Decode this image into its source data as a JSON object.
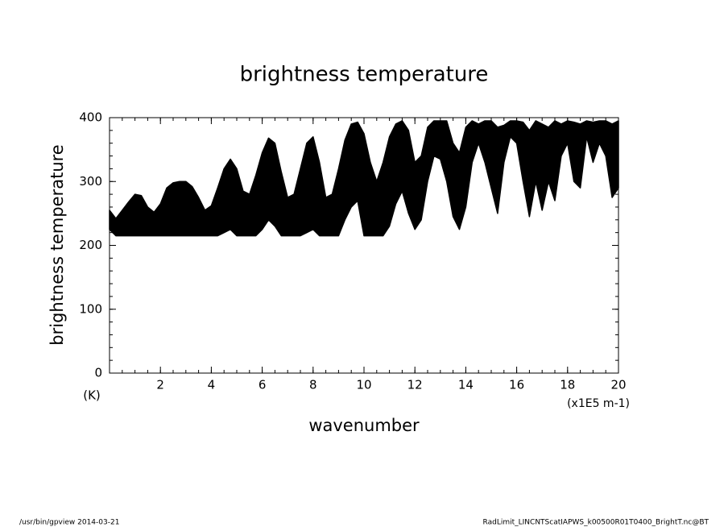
{
  "chart_data": {
    "type": "band",
    "title": "brightness temperature",
    "y_label": "brightness temperature",
    "y_unit": "(K)",
    "x_label": "wavenumber",
    "x_unit": "(x1E5 m-1)",
    "notes": [
      "/usr/bin/gpview  2014-03-21",
      "RadLimit_LINCNTScatIAPWS_k00500R01T0400_BrightT.nc@BT"
    ],
    "color": "#000000",
    "xlim": [
      0,
      20
    ],
    "ylim": [
      0,
      400
    ],
    "xticks": [
      2,
      4,
      6,
      8,
      10,
      12,
      14,
      16,
      18,
      20
    ],
    "yticks": [
      0,
      100,
      200,
      300,
      400
    ],
    "minor_tick_step": {
      "x": 0.5,
      "y": 20
    },
    "x": [
      0,
      0.25,
      0.5,
      0.75,
      1,
      1.25,
      1.5,
      1.75,
      2,
      2.25,
      2.5,
      2.75,
      3,
      3.25,
      3.5,
      3.75,
      4,
      4.25,
      4.5,
      4.75,
      5,
      5.25,
      5.5,
      5.75,
      6,
      6.25,
      6.5,
      6.75,
      7,
      7.25,
      7.5,
      7.75,
      8,
      8.25,
      8.5,
      8.75,
      9,
      9.25,
      9.5,
      9.75,
      10,
      10.25,
      10.5,
      10.75,
      11,
      11.25,
      11.5,
      11.75,
      12,
      12.25,
      12.5,
      12.75,
      13,
      13.25,
      13.5,
      13.75,
      14,
      14.25,
      14.5,
      14.75,
      15,
      15.25,
      15.5,
      15.75,
      16,
      16.25,
      16.5,
      16.75,
      17,
      17.25,
      17.5,
      17.75,
      18,
      18.25,
      18.5,
      18.75,
      19,
      19.25,
      19.5,
      19.75,
      20
    ],
    "y_upper": [
      255,
      242,
      255,
      268,
      280,
      278,
      260,
      252,
      265,
      290,
      298,
      300,
      300,
      292,
      275,
      255,
      262,
      290,
      320,
      335,
      320,
      285,
      280,
      310,
      345,
      368,
      360,
      315,
      275,
      280,
      320,
      360,
      370,
      330,
      275,
      280,
      320,
      365,
      390,
      393,
      375,
      330,
      300,
      330,
      370,
      390,
      395,
      380,
      330,
      340,
      385,
      395,
      395,
      395,
      360,
      345,
      385,
      395,
      390,
      395,
      395,
      385,
      388,
      395,
      395,
      393,
      380,
      395,
      390,
      385,
      395,
      390,
      395,
      393,
      390,
      395,
      393,
      395,
      395,
      390,
      395
    ],
    "y_lower": [
      225,
      215,
      215,
      215,
      215,
      215,
      215,
      215,
      215,
      215,
      215,
      215,
      215,
      215,
      215,
      215,
      215,
      215,
      220,
      225,
      215,
      215,
      215,
      215,
      225,
      240,
      230,
      215,
      215,
      215,
      215,
      220,
      225,
      215,
      215,
      215,
      215,
      240,
      260,
      270,
      215,
      215,
      215,
      215,
      230,
      265,
      285,
      250,
      225,
      240,
      300,
      340,
      335,
      300,
      245,
      225,
      260,
      330,
      360,
      330,
      290,
      250,
      330,
      370,
      360,
      300,
      245,
      300,
      255,
      300,
      270,
      340,
      360,
      300,
      290,
      370,
      330,
      360,
      340,
      275,
      290
    ]
  }
}
